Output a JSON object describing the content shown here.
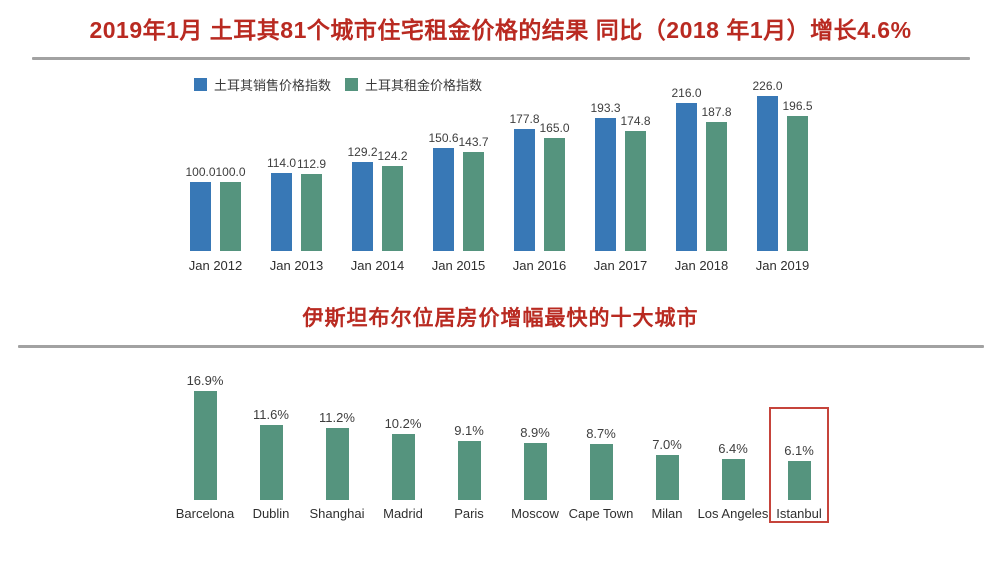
{
  "titles": {
    "top": "2019年1月 土耳其81个城市住宅租金价格的结果 同比（2018 年1月）增长4.6%",
    "middle": "伊斯坦布尔位居房价增幅最快的十大城市"
  },
  "colors": {
    "title_red": "#b92a21",
    "sales_blue": "#3878b6",
    "rent_green": "#55947e",
    "value_label_gray": "#3e3e3e",
    "divider_gray": "#a2a2a2",
    "highlight_box_red": "#c6443b"
  },
  "chart_data": [
    {
      "id": "turkey-price-index",
      "type": "bar",
      "title": "",
      "categories": [
        "Jan 2012",
        "Jan 2013",
        "Jan 2014",
        "Jan 2015",
        "Jan 2016",
        "Jan 2017",
        "Jan 2018",
        "Jan 2019"
      ],
      "series": [
        {
          "name": "土耳其销售价格指数",
          "color": "#3878b6",
          "values": [
            100.0,
            114.0,
            129.2,
            150.6,
            177.8,
            193.3,
            216.0,
            226.0
          ]
        },
        {
          "name": "土耳其租金价格指数",
          "color": "#55947e",
          "values": [
            100.0,
            112.9,
            124.2,
            143.7,
            165.0,
            174.8,
            187.8,
            196.5
          ]
        }
      ],
      "value_label_decimals": 1,
      "legend_position": "top-left",
      "grid": false,
      "ylim": [
        0,
        240
      ]
    },
    {
      "id": "top10-city-price-growth",
      "type": "bar",
      "title": "",
      "categories": [
        "Barcelona",
        "Dublin",
        "Shanghai",
        "Madrid",
        "Paris",
        "Moscow",
        "Cape Town",
        "Milan",
        "Los Angeles",
        "Istanbul"
      ],
      "values": [
        16.9,
        11.6,
        11.2,
        10.2,
        9.1,
        8.9,
        8.7,
        7.0,
        6.4,
        6.1
      ],
      "value_label_suffix": "%",
      "value_label_decimals": 1,
      "bar_color": "#55947e",
      "highlight": {
        "category": "Istanbul",
        "box_color": "#c6443b"
      },
      "grid": false,
      "ylim": [
        0,
        18
      ]
    }
  ]
}
